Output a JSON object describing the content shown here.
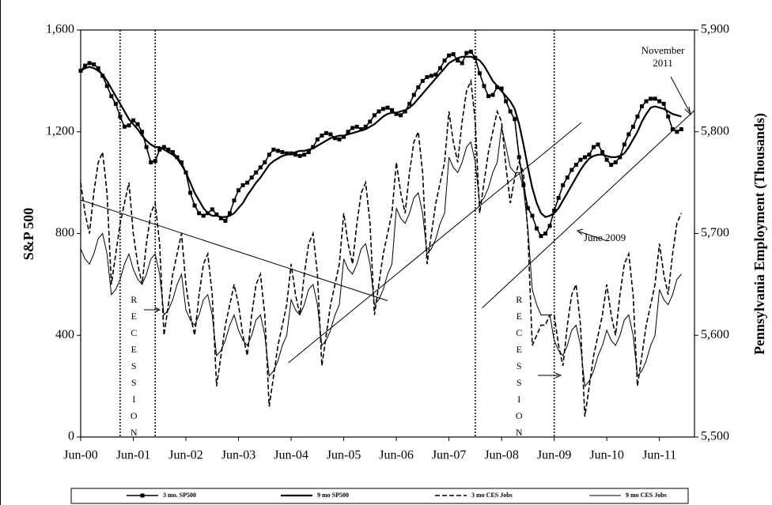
{
  "chart_data": {
    "type": "line",
    "y_label": "S&P 500",
    "y2_label": "Pennsylvania Employment (Thousands)",
    "categories": [
      "Jun-00",
      null,
      null,
      null,
      null,
      null,
      null,
      null,
      null,
      null,
      null,
      null,
      "Jun-01",
      null,
      null,
      null,
      null,
      null,
      null,
      null,
      null,
      null,
      null,
      null,
      "Jun-02",
      null,
      null,
      null,
      null,
      null,
      null,
      null,
      null,
      null,
      null,
      null,
      "Jun-03",
      null,
      null,
      null,
      null,
      null,
      null,
      null,
      null,
      null,
      null,
      null,
      "Jun-04",
      null,
      null,
      null,
      null,
      null,
      null,
      null,
      null,
      null,
      null,
      null,
      "Jun-05",
      null,
      null,
      null,
      null,
      null,
      null,
      null,
      null,
      null,
      null,
      null,
      "Jun-06",
      null,
      null,
      null,
      null,
      null,
      null,
      null,
      null,
      null,
      null,
      null,
      "Jun-07",
      null,
      null,
      null,
      null,
      null,
      null,
      null,
      null,
      null,
      null,
      null,
      "Jun-08",
      null,
      null,
      null,
      null,
      null,
      null,
      null,
      null,
      null,
      null,
      null,
      "Jun-09",
      null,
      null,
      null,
      null,
      null,
      null,
      null,
      null,
      null,
      null,
      null,
      "Jun-10",
      null,
      null,
      null,
      null,
      null,
      null,
      null,
      null,
      null,
      null,
      null,
      "Jun-11",
      null,
      null,
      null,
      null,
      null,
      null,
      null,
      null
    ],
    "series": [
      {
        "name": "3 mo. SP500",
        "color": "#000",
        "style": "solid",
        "width": 1.6,
        "marker": "square",
        "values": [
          1440,
          1460,
          1470,
          1465,
          1450,
          1420,
          1380,
          1340,
          1310,
          1260,
          1220,
          1225,
          1245,
          1230,
          1200,
          1140,
          1080,
          1085,
          1130,
          1140,
          1130,
          1120,
          1100,
          1080,
          1040,
          960,
          910,
          880,
          870,
          880,
          895,
          875,
          860,
          850,
          880,
          930,
          970,
          990,
          1000,
          1020,
          1040,
          1060,
          1080,
          1110,
          1130,
          1125,
          1120,
          1115,
          1115,
          1110,
          1105,
          1110,
          1120,
          1140,
          1170,
          1185,
          1195,
          1190,
          1175,
          1170,
          1180,
          1200,
          1215,
          1220,
          1210,
          1220,
          1240,
          1265,
          1280,
          1290,
          1295,
          1285,
          1270,
          1265,
          1280,
          1310,
          1345,
          1375,
          1400,
          1415,
          1420,
          1425,
          1450,
          1480,
          1500,
          1505,
          1480,
          1470,
          1510,
          1515,
          1490,
          1430,
          1380,
          1340,
          1345,
          1375,
          1370,
          1320,
          1280,
          1250,
          1100,
          990,
          900,
          870,
          820,
          790,
          800,
          830,
          890,
          940,
          990,
          1020,
          1050,
          1070,
          1090,
          1100,
          1110,
          1140,
          1150,
          1120,
          1090,
          1070,
          1080,
          1100,
          1150,
          1190,
          1220,
          1260,
          1300,
          1320,
          1330,
          1330,
          1320,
          1310,
          1260,
          1210,
          1200,
          1210,
          null,
          null,
          null
        ]
      },
      {
        "name": "9 mo SP500",
        "color": "#000",
        "style": "solid",
        "width": 2.2,
        "values": [
          1440,
          1450,
          1455,
          1450,
          1440,
          1425,
          1400,
          1370,
          1340,
          1310,
          1280,
          1250,
          1230,
          1210,
          1185,
          1165,
          1150,
          1140,
          1140,
          1130,
          1120,
          1110,
          1095,
          1070,
          1040,
          1000,
          960,
          930,
          900,
          880,
          870,
          870,
          865,
          865,
          870,
          880,
          900,
          920,
          950,
          975,
          1000,
          1020,
          1045,
          1070,
          1085,
          1095,
          1105,
          1110,
          1115,
          1120,
          1125,
          1125,
          1130,
          1135,
          1145,
          1155,
          1165,
          1175,
          1180,
          1185,
          1185,
          1190,
          1195,
          1200,
          1205,
          1210,
          1220,
          1230,
          1245,
          1260,
          1270,
          1275,
          1275,
          1280,
          1285,
          1295,
          1310,
          1330,
          1350,
          1370,
          1390,
          1410,
          1430,
          1450,
          1470,
          1480,
          1490,
          1495,
          1495,
          1495,
          1490,
          1480,
          1460,
          1430,
          1400,
          1380,
          1360,
          1340,
          1320,
          1290,
          1230,
          1150,
          1060,
          980,
          920,
          880,
          865,
          870,
          880,
          900,
          930,
          960,
          990,
          1020,
          1050,
          1075,
          1095,
          1105,
          1110,
          1110,
          1105,
          1100,
          1100,
          1105,
          1115,
          1140,
          1170,
          1200,
          1240,
          1270,
          1295,
          1300,
          1295,
          1290,
          1280,
          1270,
          1265,
          1260,
          null,
          null,
          null
        ]
      },
      {
        "name": "3 mo CES Jobs",
        "color": "#000",
        "style": "dashed",
        "width": 1.6,
        "axis": "y2",
        "values": [
          5750,
          5720,
          5700,
          5740,
          5770,
          5780,
          5740,
          5650,
          5680,
          5710,
          5730,
          5750,
          5700,
          5670,
          5650,
          5690,
          5720,
          5730,
          5690,
          5600,
          5630,
          5660,
          5680,
          5700,
          5650,
          5620,
          5600,
          5640,
          5670,
          5680,
          5640,
          5550,
          5580,
          5610,
          5630,
          5650,
          5630,
          5600,
          5580,
          5620,
          5650,
          5660,
          5620,
          5530,
          5560,
          5590,
          5610,
          5630,
          5670,
          5640,
          5620,
          5660,
          5690,
          5700,
          5660,
          5570,
          5600,
          5630,
          5650,
          5670,
          5720,
          5690,
          5670,
          5710,
          5740,
          5750,
          5710,
          5620,
          5650,
          5680,
          5700,
          5720,
          5770,
          5740,
          5720,
          5760,
          5790,
          5800,
          5760,
          5670,
          5700,
          5730,
          5750,
          5770,
          5820,
          5790,
          5770,
          5810,
          5840,
          5850,
          5810,
          5720,
          5750,
          5780,
          5800,
          5820,
          5810,
          5765,
          5730,
          5755,
          5770,
          5760,
          5700,
          5590,
          5600,
          5610,
          5610,
          5620,
          5620,
          5590,
          5570,
          5610,
          5640,
          5650,
          5610,
          5520,
          5550,
          5580,
          5600,
          5620,
          5650,
          5620,
          5600,
          5640,
          5670,
          5680,
          5640,
          5550,
          5580,
          5610,
          5630,
          5650,
          5690,
          5660,
          5640,
          5680,
          5710,
          5720,
          null,
          null,
          null
        ]
      },
      {
        "name": "9 mo CES Jobs",
        "color": "#000",
        "style": "solid",
        "width": 1,
        "axis": "y2",
        "values": [
          5685,
          5675,
          5670,
          5680,
          5695,
          5700,
          5680,
          5640,
          5645,
          5655,
          5670,
          5680,
          5665,
          5655,
          5650,
          5660,
          5675,
          5680,
          5660,
          5620,
          5625,
          5635,
          5650,
          5660,
          5625,
          5615,
          5610,
          5620,
          5635,
          5640,
          5620,
          5580,
          5585,
          5595,
          5610,
          5620,
          5605,
          5595,
          5590,
          5600,
          5615,
          5620,
          5600,
          5560,
          5565,
          5575,
          5590,
          5600,
          5635,
          5625,
          5620,
          5630,
          5645,
          5650,
          5630,
          5590,
          5595,
          5605,
          5620,
          5630,
          5675,
          5665,
          5660,
          5670,
          5685,
          5690,
          5670,
          5630,
          5635,
          5645,
          5660,
          5670,
          5725,
          5715,
          5710,
          5720,
          5735,
          5740,
          5720,
          5680,
          5685,
          5695,
          5710,
          5720,
          5775,
          5765,
          5760,
          5770,
          5785,
          5790,
          5770,
          5730,
          5735,
          5745,
          5760,
          5770,
          5805,
          5785,
          5765,
          5760,
          5760,
          5745,
          5705,
          5645,
          5630,
          5620,
          5620,
          5620,
          5595,
          5585,
          5580,
          5590,
          5605,
          5610,
          5590,
          5550,
          5555,
          5565,
          5580,
          5590,
          5605,
          5595,
          5590,
          5600,
          5615,
          5620,
          5600,
          5560,
          5565,
          5575,
          5590,
          5600,
          5645,
          5635,
          5630,
          5640,
          5655,
          5660,
          null,
          null,
          null
        ]
      }
    ],
    "ylim": [
      0,
      1600
    ],
    "yticks": [
      0,
      400,
      800,
      {
        "value": 1200,
        "label": "1,200"
      },
      {
        "value": 1600,
        "label": "1,600"
      }
    ],
    "y2lim": [
      5500,
      5900
    ],
    "y2ticks": [
      {
        "value": 5500,
        "label": "5,500"
      },
      {
        "value": 5600,
        "label": "5,600"
      },
      {
        "value": 5700,
        "label": "5,700"
      },
      {
        "value": 5800,
        "label": "5,800"
      },
      {
        "value": 5900,
        "label": "5,900"
      }
    ],
    "recession_lines": [
      9,
      17,
      90,
      108
    ],
    "recession_labels": [
      "RECESSION",
      "RECESSION"
    ],
    "trend_lines": [
      {
        "x": [
          0,
          70
        ],
        "y": [
          5733,
          5634
        ]
      },
      {
        "x": [
          47.4,
          114.2
        ],
        "y": [
          5573,
          5809
        ]
      },
      {
        "x": [
          91.6,
          140
        ],
        "y": [
          5627,
          5821
        ]
      }
    ],
    "annotations": [
      {
        "text": [
          "November",
          "2011"
        ]
      },
      {
        "text": [
          "June 2009"
        ]
      }
    ],
    "legend": "bottom"
  }
}
